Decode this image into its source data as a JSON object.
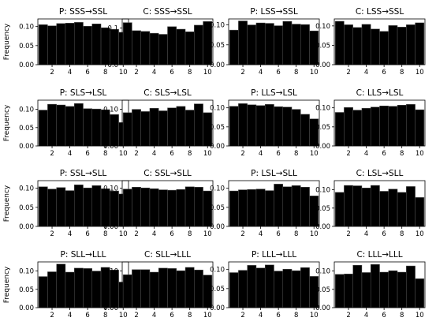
{
  "chart_data": [
    {
      "type": "bar",
      "title": "P: SSS→SSL",
      "ylabel": "Frequency",
      "x": [
        1,
        2,
        3,
        4,
        5,
        6,
        7,
        8,
        9,
        10
      ],
      "values": [
        0.105,
        0.102,
        0.108,
        0.109,
        0.111,
        0.101,
        0.107,
        0.097,
        0.093,
        0.085
      ],
      "ylim": [
        0,
        0.12
      ],
      "yticks": [
        0.0,
        0.05,
        0.1
      ],
      "xticks": [
        2,
        4,
        6,
        8,
        10
      ]
    },
    {
      "type": "bar",
      "title": "C: SSS→SSL",
      "ylabel": "",
      "x": [
        1,
        2,
        3,
        4,
        5,
        6,
        7,
        8,
        9,
        10
      ],
      "values": [
        0.115,
        0.093,
        0.091,
        0.086,
        0.083,
        0.104,
        0.097,
        0.09,
        0.108,
        0.118
      ],
      "ylim": [
        0,
        0.125
      ],
      "yticks": [
        0.0,
        0.1
      ],
      "xticks": [
        2,
        4,
        6,
        8,
        10
      ]
    },
    {
      "type": "bar",
      "title": "P: LSS→SSL",
      "ylabel": "",
      "x": [
        1,
        2,
        3,
        4,
        5,
        6,
        7,
        8,
        9,
        10
      ],
      "values": [
        0.087,
        0.11,
        0.1,
        0.105,
        0.104,
        0.098,
        0.109,
        0.102,
        0.101,
        0.085
      ],
      "ylim": [
        0,
        0.115
      ],
      "yticks": [
        0.0,
        0.05,
        0.1
      ],
      "xticks": [
        2,
        4,
        6,
        8,
        10
      ]
    },
    {
      "type": "bar",
      "title": "C: LSS→SSL",
      "ylabel": "",
      "x": [
        1,
        2,
        3,
        4,
        5,
        6,
        7,
        8,
        9,
        10
      ],
      "values": [
        0.112,
        0.103,
        0.096,
        0.104,
        0.092,
        0.086,
        0.101,
        0.097,
        0.103,
        0.108
      ],
      "ylim": [
        0,
        0.118
      ],
      "yticks": [
        0.0,
        0.05,
        0.1
      ],
      "xticks": [
        2,
        4,
        6,
        8,
        10
      ]
    },
    {
      "type": "bar",
      "title": "P: SLS→LSL",
      "ylabel": "Frequency",
      "x": [
        1,
        2,
        3,
        4,
        5,
        6,
        7,
        8,
        9,
        10
      ],
      "values": [
        0.098,
        0.114,
        0.112,
        0.108,
        0.116,
        0.102,
        0.101,
        0.099,
        0.086,
        0.064
      ],
      "ylim": [
        0,
        0.125
      ],
      "yticks": [
        0.0,
        0.05,
        0.1
      ],
      "xticks": [
        2,
        4,
        6,
        8,
        10
      ]
    },
    {
      "type": "bar",
      "title": "C: SLS→LSL",
      "ylabel": "",
      "x": [
        1,
        2,
        3,
        4,
        5,
        6,
        7,
        8,
        9,
        10
      ],
      "values": [
        0.091,
        0.1,
        0.094,
        0.103,
        0.096,
        0.104,
        0.108,
        0.098,
        0.115,
        0.091
      ],
      "ylim": [
        0,
        0.125
      ],
      "yticks": [
        0.0,
        0.05,
        0.1
      ],
      "xticks": [
        2,
        4,
        6,
        8,
        10
      ]
    },
    {
      "type": "bar",
      "title": "P: LLS→LSL",
      "ylabel": "",
      "x": [
        1,
        2,
        3,
        4,
        5,
        6,
        7,
        8,
        9,
        10
      ],
      "values": [
        0.104,
        0.111,
        0.108,
        0.106,
        0.109,
        0.103,
        0.102,
        0.096,
        0.083,
        0.071
      ],
      "ylim": [
        0,
        0.12
      ],
      "yticks": [
        0.0,
        0.05,
        0.1
      ],
      "xticks": [
        2,
        4,
        6,
        8,
        10
      ]
    },
    {
      "type": "bar",
      "title": "C: LLS→LSL",
      "ylabel": "",
      "x": [
        1,
        2,
        3,
        4,
        5,
        6,
        7,
        8,
        9,
        10
      ],
      "values": [
        0.088,
        0.101,
        0.094,
        0.099,
        0.102,
        0.105,
        0.104,
        0.107,
        0.109,
        0.095
      ],
      "ylim": [
        0,
        0.12
      ],
      "yticks": [
        0.0,
        0.05,
        0.1
      ],
      "xticks": [
        2,
        4,
        6,
        8,
        10
      ]
    },
    {
      "type": "bar",
      "title": "P: SSL→SLL",
      "ylabel": "Frequency",
      "x": [
        1,
        2,
        3,
        4,
        5,
        6,
        7,
        8,
        9,
        10
      ],
      "values": [
        0.104,
        0.098,
        0.102,
        0.094,
        0.109,
        0.101,
        0.107,
        0.099,
        0.093,
        0.085
      ],
      "ylim": [
        0,
        0.12
      ],
      "yticks": [
        0.0,
        0.05,
        0.1
      ],
      "xticks": [
        2,
        4,
        6,
        8,
        10
      ]
    },
    {
      "type": "bar",
      "title": "C: SSL→SLL",
      "ylabel": "",
      "x": [
        1,
        2,
        3,
        4,
        5,
        6,
        7,
        8,
        9,
        10
      ],
      "values": [
        0.098,
        0.103,
        0.101,
        0.099,
        0.096,
        0.095,
        0.097,
        0.104,
        0.103,
        0.093
      ],
      "ylim": [
        0,
        0.12
      ],
      "yticks": [
        0.0,
        0.05,
        0.1
      ],
      "xticks": [
        2,
        4,
        6,
        8,
        10
      ]
    },
    {
      "type": "bar",
      "title": "P: LSL→SLL",
      "ylabel": "",
      "x": [
        1,
        2,
        3,
        4,
        5,
        6,
        7,
        8,
        9,
        10
      ],
      "values": [
        0.093,
        0.096,
        0.097,
        0.098,
        0.094,
        0.111,
        0.104,
        0.107,
        0.103,
        0.08
      ],
      "ylim": [
        0,
        0.12
      ],
      "yticks": [
        0.0,
        0.05,
        0.1
      ],
      "xticks": [
        2,
        4,
        6,
        8,
        10
      ]
    },
    {
      "type": "bar",
      "title": "C: LSL→SLL",
      "ylabel": "",
      "x": [
        1,
        2,
        3,
        4,
        5,
        6,
        7,
        8,
        9,
        10
      ],
      "values": [
        0.093,
        0.112,
        0.111,
        0.105,
        0.112,
        0.096,
        0.102,
        0.093,
        0.109,
        0.079
      ],
      "ylim": [
        0,
        0.125
      ],
      "yticks": [
        0.0,
        0.05,
        0.1
      ],
      "xticks": [
        2,
        4,
        6,
        8,
        10
      ]
    },
    {
      "type": "bar",
      "title": "P: SLL→LLL",
      "ylabel": "Frequency",
      "x": [
        1,
        2,
        3,
        4,
        5,
        6,
        7,
        8,
        9,
        10
      ],
      "values": [
        0.085,
        0.098,
        0.119,
        0.097,
        0.108,
        0.107,
        0.1,
        0.11,
        0.103,
        0.07
      ],
      "ylim": [
        0,
        0.125
      ],
      "yticks": [
        0.0,
        0.05,
        0.1
      ],
      "xticks": [
        2,
        4,
        6,
        8,
        10
      ]
    },
    {
      "type": "bar",
      "title": "C: SLL→LLL",
      "ylabel": "",
      "x": [
        1,
        2,
        3,
        4,
        5,
        6,
        7,
        8,
        9,
        10
      ],
      "values": [
        0.09,
        0.104,
        0.104,
        0.097,
        0.108,
        0.107,
        0.101,
        0.11,
        0.103,
        0.089
      ],
      "ylim": [
        0,
        0.125
      ],
      "yticks": [
        0.0,
        0.05,
        0.1
      ],
      "xticks": [
        2,
        4,
        6,
        8,
        10
      ]
    },
    {
      "type": "bar",
      "title": "P: LLL→LLL",
      "ylabel": "",
      "x": [
        1,
        2,
        3,
        4,
        5,
        6,
        7,
        8,
        9,
        10
      ],
      "values": [
        0.092,
        0.098,
        0.111,
        0.104,
        0.112,
        0.096,
        0.101,
        0.097,
        0.105,
        0.082
      ],
      "ylim": [
        0,
        0.12
      ],
      "yticks": [
        0.0,
        0.05,
        0.1
      ],
      "xticks": [
        2,
        4,
        6,
        8,
        10
      ]
    },
    {
      "type": "bar",
      "title": "C: LLL→LLL",
      "ylabel": "",
      "x": [
        1,
        2,
        3,
        4,
        5,
        6,
        7,
        8,
        9,
        10
      ],
      "values": [
        0.091,
        0.092,
        0.116,
        0.096,
        0.118,
        0.097,
        0.101,
        0.097,
        0.114,
        0.079
      ],
      "ylim": [
        0,
        0.125
      ],
      "yticks": [
        0.0,
        0.05,
        0.1
      ],
      "xticks": [
        2,
        4,
        6,
        8,
        10
      ]
    }
  ],
  "colors": {
    "bar_fill": "#000000",
    "bar_edge": "#555555",
    "axis": "#000000",
    "background": "#ffffff"
  }
}
